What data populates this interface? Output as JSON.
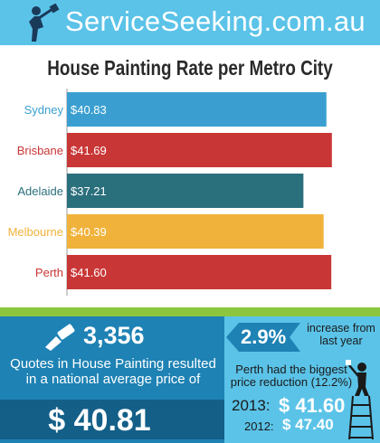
{
  "header": {
    "site_name": "ServiceSeeking.com.au",
    "logo_icon": "painter-silhouette-icon"
  },
  "chart_data": {
    "type": "bar",
    "orientation": "horizontal",
    "title": "House Painting Rate per Metro City",
    "categories": [
      "Sydney",
      "Brisbane",
      "Adelaide",
      "Melbourne",
      "Perth"
    ],
    "values": [
      40.83,
      41.69,
      37.21,
      40.39,
      41.6
    ],
    "value_labels": [
      "$40.83",
      "$41.69",
      "$37.21",
      "$40.39",
      "$41.60"
    ],
    "colors": [
      "#3a9fd0",
      "#c93636",
      "#2a6f7c",
      "#f0b23a",
      "#c93636"
    ],
    "xlim": [
      0,
      42
    ],
    "grid": false,
    "legend": "none"
  },
  "stats": {
    "quote_count": "3,356",
    "quote_text": "Quotes in House Painting resulted in a national average price of",
    "average_price": "$ 40.81",
    "brush_icon": "paintbrush-icon",
    "increase_value": "2.9%",
    "increase_text": "increase from last year",
    "perth_text": "Perth had the biggest price reduction (12.2%)",
    "year_2013": "2013:",
    "price_2013": "$ 41.60",
    "year_2012": "2012:",
    "price_2012": "$ 47.40",
    "painter_icon": "painter-on-ladder-icon"
  },
  "colors": {
    "header_bg": "#5bc3e8",
    "green_band": "#8cc63f",
    "blue_panel": "#1e82b4",
    "dark_box": "#135f88",
    "light_panel": "#5bc3e8"
  }
}
